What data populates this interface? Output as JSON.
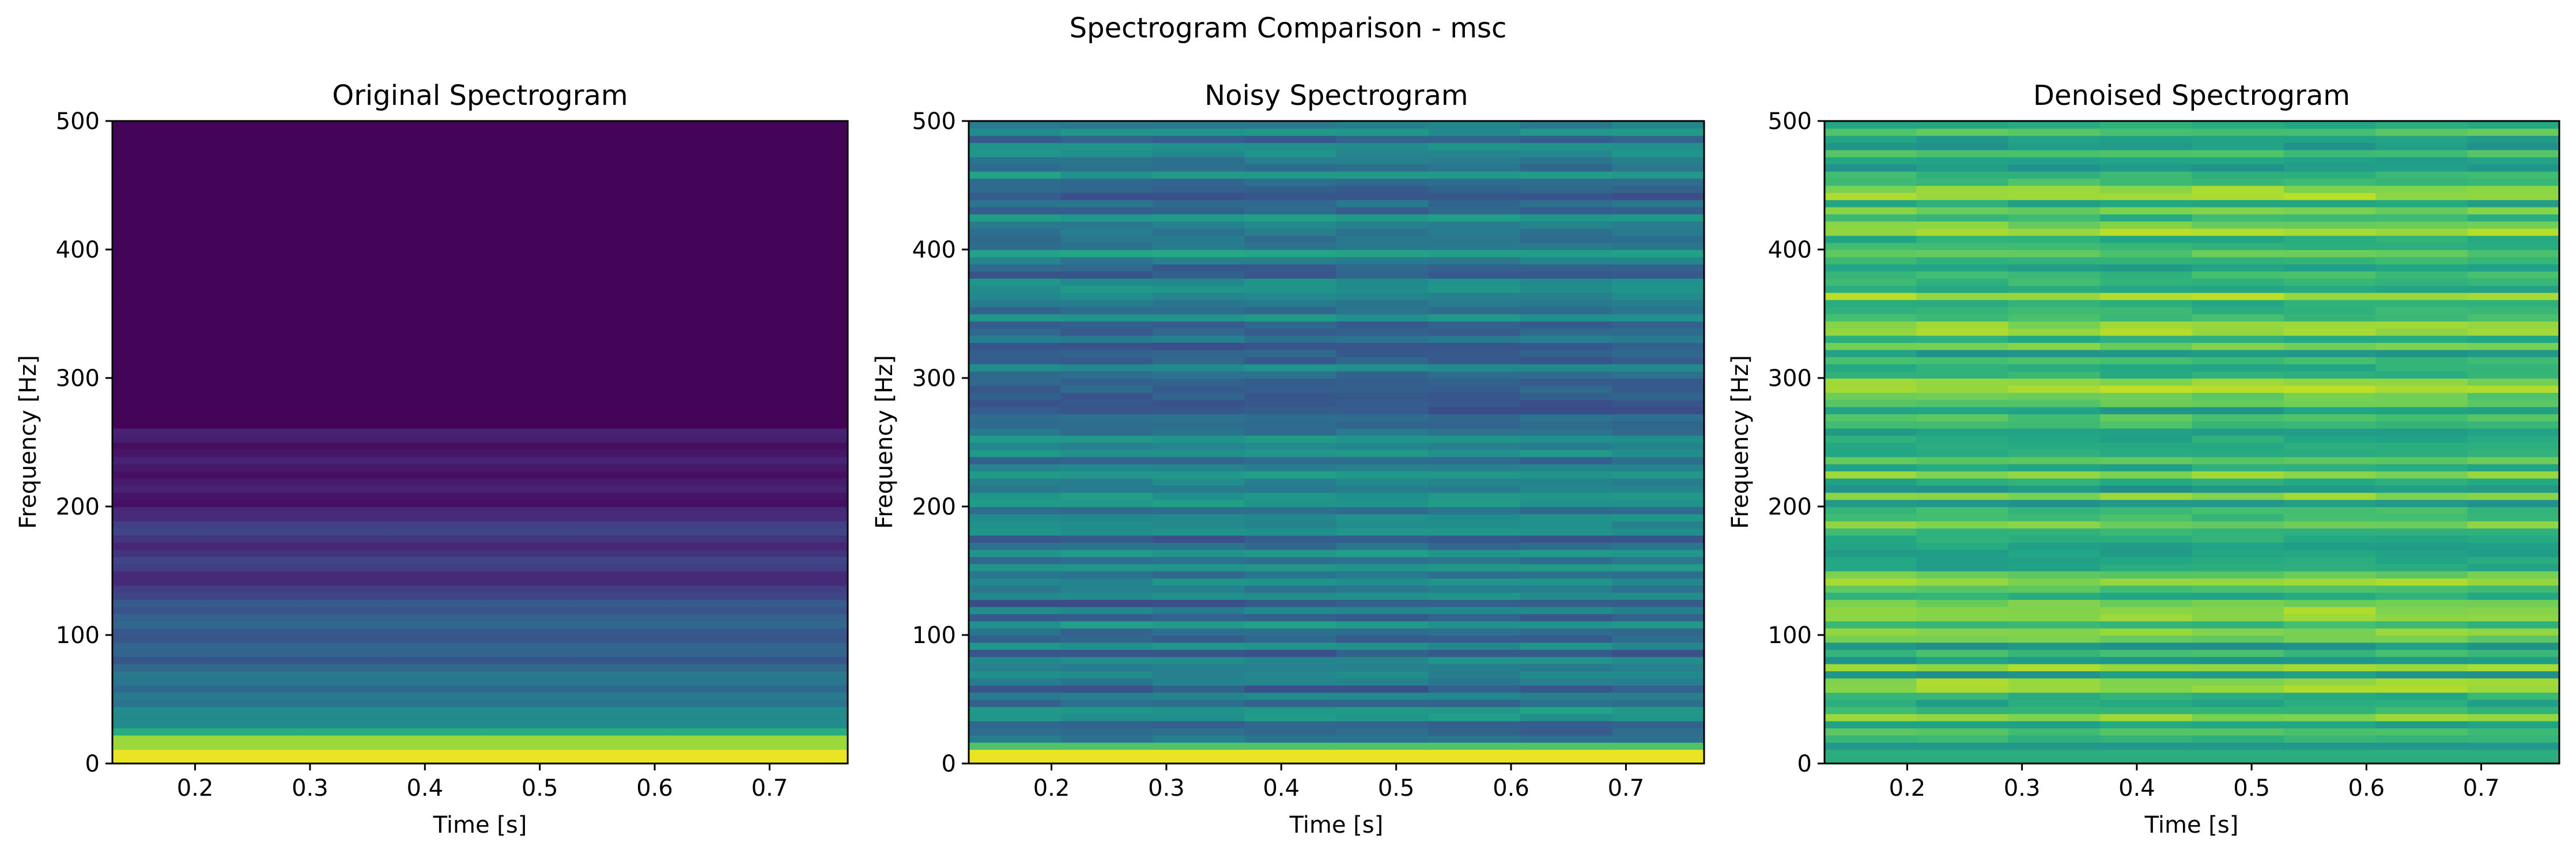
{
  "figure_title": "Spectrogram Comparison - msc",
  "colormap": "viridis",
  "chart_data": [
    {
      "type": "heatmap",
      "title": "Original Spectrogram",
      "xlabel": "Time [s]",
      "ylabel": "Frequency [Hz]",
      "xlim": [
        0.128,
        0.768
      ],
      "ylim": [
        0,
        500
      ],
      "xticks": [
        0.2,
        0.3,
        0.4,
        0.5,
        0.6,
        0.7
      ],
      "xtick_labels": [
        "0.2",
        "0.3",
        "0.4",
        "0.5",
        "0.6",
        "0.7"
      ],
      "yticks": [
        0,
        100,
        200,
        300,
        400,
        500
      ],
      "ytick_labels": [
        "0",
        "100",
        "200",
        "300",
        "400",
        "500"
      ],
      "description_of_intensity": "strong energy below 20 Hz, moderate bands 40-150 Hz, near-minimum above 250 Hz"
    },
    {
      "type": "heatmap",
      "title": "Noisy Spectrogram",
      "xlabel": "Time [s]",
      "ylabel": "Frequency [Hz]",
      "xlim": [
        0.128,
        0.768
      ],
      "ylim": [
        0,
        500
      ],
      "xticks": [
        0.2,
        0.3,
        0.4,
        0.5,
        0.6,
        0.7
      ],
      "xtick_labels": [
        "0.2",
        "0.3",
        "0.4",
        "0.5",
        "0.6",
        "0.7"
      ],
      "yticks": [
        0,
        100,
        200,
        300,
        400,
        500
      ],
      "ytick_labels": [
        "0",
        "100",
        "200",
        "300",
        "400",
        "500"
      ],
      "description_of_intensity": "broadband mid-level noise with horizontal streaks, strong band below 15 Hz"
    },
    {
      "type": "heatmap",
      "title": "Denoised Spectrogram",
      "xlabel": "Time [s]",
      "ylabel": "Frequency [Hz]",
      "xlim": [
        0.128,
        0.768
      ],
      "ylim": [
        0,
        500
      ],
      "xticks": [
        0.2,
        0.3,
        0.4,
        0.5,
        0.6,
        0.7
      ],
      "xtick_labels": [
        "0.2",
        "0.3",
        "0.4",
        "0.5",
        "0.6",
        "0.7"
      ],
      "yticks": [
        0,
        100,
        200,
        300,
        400,
        500
      ],
      "ytick_labels": [
        "0",
        "100",
        "200",
        "300",
        "400",
        "500"
      ],
      "description_of_intensity": "high, fairly uniform intensity with yellow-green horizontal streaks"
    }
  ]
}
